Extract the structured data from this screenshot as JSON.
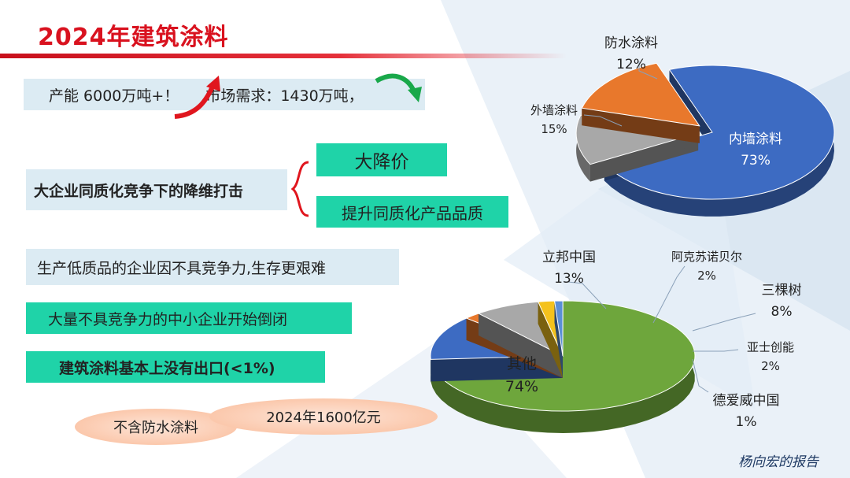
{
  "title": "2024年建筑涂料",
  "capacity_text": "产能 6000万吨+！",
  "demand_text": "市场需求：1430万吨，",
  "competition_text": "大企业同质化竞争下的降维打击",
  "price_cut_text": "大降价",
  "quality_text": "提升同质化产品品质",
  "low_quality_text": "生产低质品的企业因不具竞争力,生存更艰难",
  "closures_text": "大量不具竞争力的中小企业开始倒闭",
  "export_text": "建筑涂料基本上没有出口(<1%)",
  "note_small": "不含防水涂料",
  "note_big": "2024年1600亿元",
  "footer": "杨向宏的报告",
  "colors": {
    "title_red": "#d9121f",
    "teal": "#1fd3a8",
    "light_blue": "#dcebf3"
  },
  "chart_data": [
    {
      "type": "pie",
      "slices": [
        {
          "name": "内墙涂料",
          "value": 73,
          "label": "73%",
          "color": "#3d6bc2"
        },
        {
          "name": "防水涂料",
          "value": 12,
          "label": "12%",
          "color": "#a8a8a8"
        },
        {
          "name": "外墙涂料",
          "value": 15,
          "label": "15%",
          "color": "#e8782c"
        }
      ]
    },
    {
      "type": "pie",
      "slices": [
        {
          "name": "其他",
          "value": 74,
          "label": "74%",
          "color": "#6ea63c"
        },
        {
          "name": "立邦中国",
          "value": 13,
          "label": "13%",
          "color": "#3d6bc2"
        },
        {
          "name": "阿克苏诺贝尔",
          "value": 2,
          "label": "2%",
          "color": "#e8782c"
        },
        {
          "name": "三棵树",
          "value": 8,
          "label": "8%",
          "color": "#a8a8a8"
        },
        {
          "name": "亚士创能",
          "value": 2,
          "label": "2%",
          "color": "#f4c21d"
        },
        {
          "name": "德爱威中国",
          "value": 1,
          "label": "1%",
          "color": "#5b8fd6"
        }
      ]
    }
  ]
}
